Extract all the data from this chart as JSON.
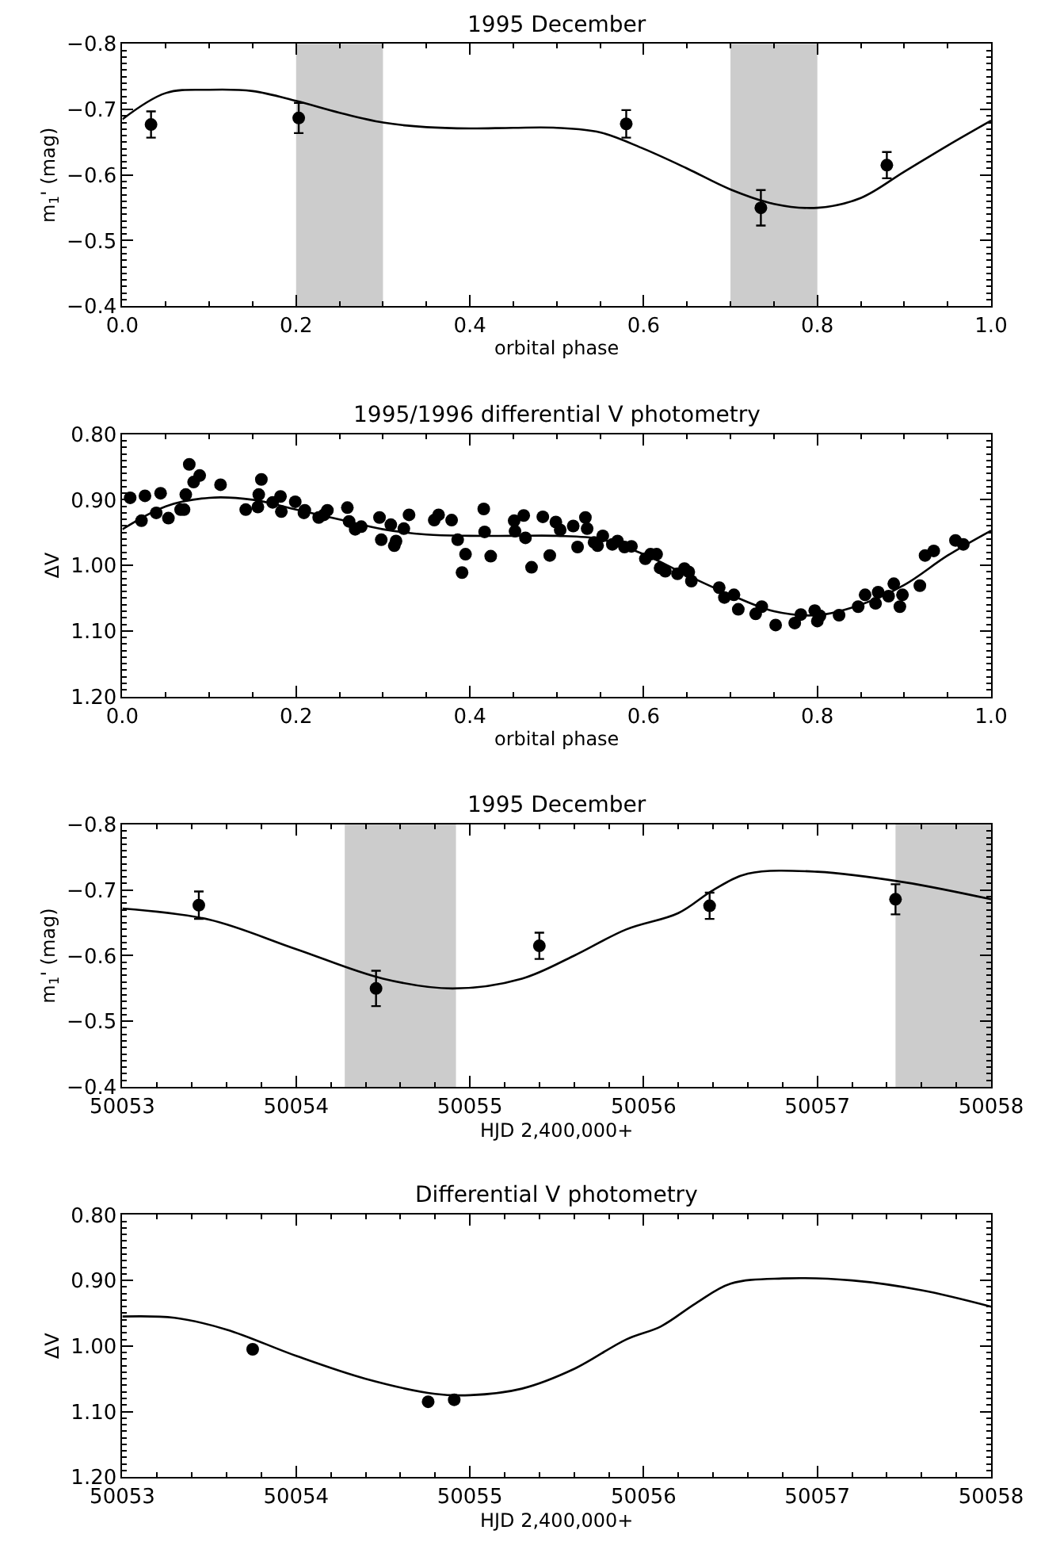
{
  "chart_data": [
    {
      "type": "scatter",
      "title": "1995 December",
      "xlabel": "orbital phase",
      "ylabel": "m$_{1}$' (mag)",
      "xlim": [
        0,
        1
      ],
      "ylim": [
        -0.4,
        -0.8
      ],
      "xticks": [
        {
          "value": 0,
          "label": "0.0"
        },
        {
          "value": 0.2,
          "label": "0.2"
        },
        {
          "value": 0.4,
          "label": "0.4"
        },
        {
          "value": 0.6,
          "label": "0.6"
        },
        {
          "value": 0.8,
          "label": "0.8"
        },
        {
          "value": 1,
          "label": "1.0"
        }
      ],
      "yticks": [
        {
          "value": -0.8,
          "label": "−0.8"
        },
        {
          "value": -0.7,
          "label": "−0.7"
        },
        {
          "value": -0.6,
          "label": "−0.6"
        },
        {
          "value": -0.5,
          "label": "−0.5"
        },
        {
          "value": -0.4,
          "label": "−0.4"
        }
      ],
      "bands": [
        {
          "axis": "x",
          "from": 0.2,
          "to": 0.3,
          "color": "#cccccc"
        },
        {
          "axis": "x",
          "from": 0.7,
          "to": 0.8,
          "color": "#cccccc"
        }
      ],
      "series": [
        {
          "type": "line",
          "color": "#000000",
          "marker": "none",
          "x": [
            0,
            0.05,
            0.1,
            0.15,
            0.2,
            0.25,
            0.3,
            0.35,
            0.4,
            0.45,
            0.5,
            0.55,
            0.6,
            0.65,
            0.7,
            0.75,
            0.8,
            0.85,
            0.9,
            0.95,
            1.0
          ],
          "values": [
            -0.685,
            -0.725,
            -0.73,
            -0.728,
            -0.713,
            -0.695,
            -0.68,
            -0.673,
            -0.671,
            -0.672,
            -0.672,
            -0.665,
            -0.64,
            -0.61,
            -0.578,
            -0.556,
            -0.55,
            -0.565,
            -0.605,
            -0.645,
            -0.683
          ]
        },
        {
          "color": "#000000",
          "marker": "circle",
          "x": [
            0.033,
            0.203,
            0.58,
            0.735,
            0.88
          ],
          "values": [
            -0.677,
            -0.687,
            -0.678,
            -0.55,
            -0.615
          ],
          "errors": [
            0.02,
            0.023,
            0.021,
            0.027,
            0.02
          ]
        }
      ],
      "grid": false
    },
    {
      "type": "scatter",
      "title": "1995/1996 differential V photometry",
      "xlabel": "orbital phase",
      "ylabel": "ΔV",
      "xlim": [
        0,
        1
      ],
      "ylim": [
        1.2,
        0.8
      ],
      "xticks": [
        {
          "value": 0,
          "label": "0.0"
        },
        {
          "value": 0.2,
          "label": "0.2"
        },
        {
          "value": 0.4,
          "label": "0.4"
        },
        {
          "value": 0.6,
          "label": "0.6"
        },
        {
          "value": 0.8,
          "label": "0.8"
        },
        {
          "value": 1,
          "label": "1.0"
        }
      ],
      "yticks": [
        {
          "value": 0.8,
          "label": "0.80"
        },
        {
          "value": 0.9,
          "label": "0.90"
        },
        {
          "value": 1.0,
          "label": "1.00"
        },
        {
          "value": 1.1,
          "label": "1.10"
        },
        {
          "value": 1.2,
          "label": "1.20"
        }
      ],
      "series": [
        {
          "type": "line",
          "color": "#000000",
          "marker": "none",
          "x": [
            0,
            0.05,
            0.1,
            0.15,
            0.2,
            0.25,
            0.3,
            0.35,
            0.4,
            0.45,
            0.5,
            0.55,
            0.6,
            0.65,
            0.7,
            0.75,
            0.8,
            0.85,
            0.9,
            0.95,
            1.0
          ],
          "values": [
            0.945,
            0.91,
            0.897,
            0.9,
            0.915,
            0.93,
            0.945,
            0.953,
            0.955,
            0.955,
            0.955,
            0.96,
            0.983,
            1.015,
            1.045,
            1.07,
            1.076,
            1.06,
            1.03,
            0.985,
            0.947
          ]
        },
        {
          "color": "#000000",
          "marker": "circle",
          "x": [
            0.009,
            0.022,
            0.026,
            0.039,
            0.044,
            0.053,
            0.067,
            0.071,
            0.073,
            0.077,
            0.082,
            0.089,
            0.113,
            0.142,
            0.156,
            0.157,
            0.16,
            0.173,
            0.182,
            0.183,
            0.199,
            0.209,
            0.21,
            0.226,
            0.232,
            0.236,
            0.259,
            0.261,
            0.268,
            0.275,
            0.296,
            0.298,
            0.309,
            0.313,
            0.315,
            0.324,
            0.33,
            0.359,
            0.364,
            0.379,
            0.386,
            0.395,
            0.391,
            0.416,
            0.417,
            0.424,
            0.451,
            0.452,
            0.462,
            0.464,
            0.471,
            0.484,
            0.492,
            0.499,
            0.504,
            0.519,
            0.524,
            0.533,
            0.535,
            0.543,
            0.547,
            0.553,
            0.564,
            0.57,
            0.578,
            0.586,
            0.602,
            0.608,
            0.615,
            0.619,
            0.625,
            0.639,
            0.647,
            0.652,
            0.655,
            0.687,
            0.693,
            0.704,
            0.709,
            0.729,
            0.736,
            0.752,
            0.774,
            0.781,
            0.797,
            0.8,
            0.803,
            0.825,
            0.847,
            0.855,
            0.867,
            0.87,
            0.882,
            0.888,
            0.895,
            0.898,
            0.918,
            0.924,
            0.934,
            0.959,
            0.968
          ],
          "values": [
            0.897,
            0.932,
            0.894,
            0.92,
            0.89,
            0.928,
            0.915,
            0.915,
            0.892,
            0.846,
            0.873,
            0.863,
            0.877,
            0.915,
            0.911,
            0.892,
            0.869,
            0.904,
            0.895,
            0.918,
            0.903,
            0.92,
            0.916,
            0.927,
            0.923,
            0.916,
            0.912,
            0.933,
            0.945,
            0.941,
            0.927,
            0.961,
            0.938,
            0.97,
            0.963,
            0.944,
            0.923,
            0.931,
            0.923,
            0.931,
            0.961,
            0.983,
            1.011,
            0.914,
            0.949,
            0.986,
            0.932,
            0.948,
            0.924,
            0.958,
            1.003,
            0.926,
            0.985,
            0.934,
            0.946,
            0.94,
            0.972,
            0.927,
            0.944,
            0.965,
            0.97,
            0.955,
            0.968,
            0.963,
            0.972,
            0.971,
            0.99,
            0.983,
            0.983,
            1.004,
            1.009,
            1.013,
            1.005,
            1.01,
            1.024,
            1.034,
            1.049,
            1.045,
            1.067,
            1.074,
            1.063,
            1.091,
            1.088,
            1.075,
            1.069,
            1.085,
            1.077,
            1.076,
            1.063,
            1.045,
            1.058,
            1.041,
            1.047,
            1.028,
            1.063,
            1.045,
            1.031,
            0.985,
            0.978,
            0.962,
            0.968
          ]
        }
      ],
      "grid": false
    },
    {
      "type": "scatter",
      "title": "1995 December",
      "xlabel": "HJD 2,400,000+",
      "ylabel": "m$_{1}$' (mag)",
      "xlim": [
        50053,
        50058
      ],
      "ylim": [
        -0.4,
        -0.8
      ],
      "xticks": [
        50053,
        50054,
        50055,
        50056,
        50057,
        50058
      ],
      "yticks": [
        {
          "value": -0.8,
          "label": "−0.8"
        },
        {
          "value": -0.7,
          "label": "−0.7"
        },
        {
          "value": -0.6,
          "label": "−0.6"
        },
        {
          "value": -0.5,
          "label": "−0.5"
        },
        {
          "value": -0.4,
          "label": "−0.4"
        }
      ],
      "bands": [
        {
          "axis": "x",
          "from": 50054.28,
          "to": 50054.92,
          "color": "#cccccc"
        },
        {
          "axis": "x",
          "from": 50057.45,
          "to": 50058,
          "color": "#cccccc"
        }
      ],
      "series": [
        {
          "type": "line",
          "color": "#000000",
          "marker": "none",
          "x": [
            50053,
            50053.5,
            50054,
            50054.5,
            50054.9,
            50055.3,
            50055.6,
            50055.9,
            50056.2,
            50056.4,
            50056.6,
            50057,
            50057.5,
            50058
          ],
          "values": [
            -0.672,
            -0.655,
            -0.61,
            -0.565,
            -0.55,
            -0.565,
            -0.6,
            -0.64,
            -0.665,
            -0.7,
            -0.725,
            -0.728,
            -0.712,
            -0.686
          ]
        },
        {
          "color": "#000000",
          "marker": "circle",
          "x": [
            50053.44,
            50054.46,
            50055.4,
            50056.38,
            50057.45
          ],
          "values": [
            -0.677,
            -0.55,
            -0.615,
            -0.676,
            -0.686
          ],
          "errors": [
            0.021,
            0.027,
            0.02,
            0.02,
            0.023
          ]
        }
      ],
      "grid": false
    },
    {
      "type": "scatter",
      "title": "Differential V photometry",
      "xlabel": "HJD 2,400,000+",
      "ylabel": "ΔV",
      "xlim": [
        50053,
        50058
      ],
      "ylim": [
        1.2,
        0.8
      ],
      "xticks": [
        50053,
        50054,
        50055,
        50056,
        50057,
        50058
      ],
      "yticks": [
        {
          "value": 0.8,
          "label": "0.80"
        },
        {
          "value": 0.9,
          "label": "0.90"
        },
        {
          "value": 1.0,
          "label": "1.00"
        },
        {
          "value": 1.1,
          "label": "1.10"
        },
        {
          "value": 1.2,
          "label": "1.20"
        }
      ],
      "series": [
        {
          "type": "line",
          "color": "#000000",
          "marker": "none",
          "x": [
            50053,
            50053.3,
            50053.6,
            50054,
            50054.4,
            50054.8,
            50055,
            50055.3,
            50055.6,
            50055.9,
            50056.1,
            50056.3,
            50056.5,
            50056.8,
            50057.2,
            50057.6,
            50058
          ],
          "values": [
            0.955,
            0.957,
            0.975,
            1.015,
            1.05,
            1.073,
            1.075,
            1.065,
            1.035,
            0.99,
            0.97,
            0.935,
            0.905,
            0.897,
            0.9,
            0.915,
            0.94
          ]
        },
        {
          "color": "#000000",
          "marker": "circle",
          "x": [
            50053.75,
            50054.76,
            50054.91
          ],
          "values": [
            1.005,
            1.085,
            1.082
          ]
        }
      ],
      "grid": false
    }
  ]
}
